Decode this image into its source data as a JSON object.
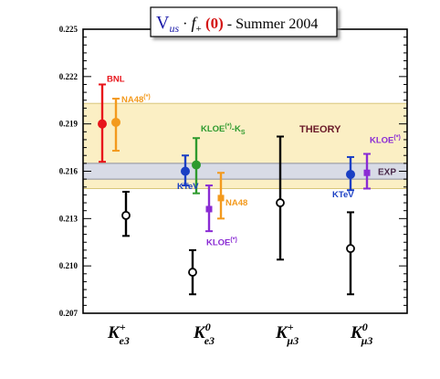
{
  "chart_data": {
    "type": "scatter",
    "title": {
      "v": "V",
      "v_sub": "us",
      "dot": "·",
      "f": "f",
      "f_sub": "+",
      "zero": "(0)",
      "rest": " - Summer 2004"
    },
    "ylim": [
      0.207,
      0.225
    ],
    "yticks": [
      "0.207",
      "0.210",
      "0.213",
      "0.216",
      "0.219",
      "0.222",
      "0.225"
    ],
    "categories": [
      {
        "base": "K",
        "sup": "+",
        "sub": "e3"
      },
      {
        "base": "K",
        "sup": "0",
        "sub": "e3"
      },
      {
        "base": "K",
        "sup": "+",
        "sub": "μ3"
      },
      {
        "base": "K",
        "sup": "0",
        "sub": "μ3"
      }
    ],
    "bands": [
      {
        "label": "THEORY",
        "ymin": 0.2149,
        "ymax": 0.2203,
        "color": "#fbefc4",
        "edge": "#d8c67a",
        "label_color": "#6b1b2a"
      },
      {
        "label": "EXP",
        "ymin": 0.2155,
        "ymax": 0.2165,
        "color": "#d8dbe6",
        "edge": "#8c8f9e",
        "label_color": "#4a2a4a"
      }
    ],
    "points": [
      {
        "category": 0,
        "y": 0.219,
        "low": 0.2166,
        "high": 0.2215,
        "color": "#e8151b",
        "marker": "circle-filled",
        "label": "BNL"
      },
      {
        "category": 0,
        "y": 0.2191,
        "low": 0.2173,
        "high": 0.2206,
        "color": "#f39a1e",
        "marker": "circle-filled",
        "label": "NA48",
        "label_sup": "(*)"
      },
      {
        "category": 0,
        "y": 0.2132,
        "low": 0.2119,
        "high": 0.2147,
        "color": "#000000",
        "marker": "circle-open",
        "label": ""
      },
      {
        "category": 1,
        "y": 0.2164,
        "low": 0.2146,
        "high": 0.2181,
        "color": "#2e9a2e",
        "marker": "circle-filled",
        "label": "KLOE",
        "label_sup": "(*)",
        "label_suffix": "-K",
        "label_sub": "S"
      },
      {
        "category": 1,
        "y": 0.216,
        "low": 0.2151,
        "high": 0.217,
        "color": "#1a3fc4",
        "marker": "circle-filled",
        "label": "KTeV"
      },
      {
        "category": 1,
        "y": 0.2136,
        "low": 0.2122,
        "high": 0.2151,
        "color": "#8a2bd4",
        "marker": "square",
        "label": "KLOE",
        "label_sup": "(*)"
      },
      {
        "category": 1,
        "y": 0.2143,
        "low": 0.213,
        "high": 0.2159,
        "color": "#f39a1e",
        "marker": "square",
        "label": "NA48"
      },
      {
        "category": 1,
        "y": 0.2096,
        "low": 0.2082,
        "high": 0.211,
        "color": "#000000",
        "marker": "circle-open",
        "label": ""
      },
      {
        "category": 2,
        "y": 0.214,
        "low": 0.2104,
        "high": 0.2182,
        "color": "#000000",
        "marker": "circle-open",
        "label": ""
      },
      {
        "category": 3,
        "y": 0.2158,
        "low": 0.2148,
        "high": 0.2169,
        "color": "#1a3fc4",
        "marker": "circle-filled",
        "label": "KTeV"
      },
      {
        "category": 3,
        "y": 0.2159,
        "low": 0.2149,
        "high": 0.2171,
        "color": "#8a2bd4",
        "marker": "square",
        "label": "KLOE",
        "label_sup": "(*)"
      },
      {
        "category": 3,
        "y": 0.2111,
        "low": 0.2082,
        "high": 0.2134,
        "color": "#000000",
        "marker": "circle-open",
        "label": ""
      }
    ]
  }
}
